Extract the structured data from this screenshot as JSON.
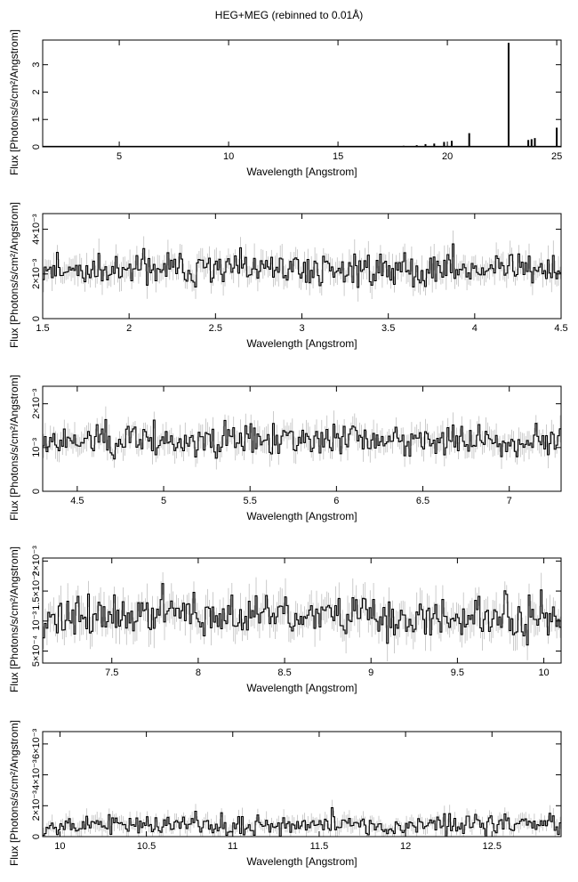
{
  "title": "HEG+MEG (rebinned to 0.01Å)",
  "colors": {
    "data": "#000000",
    "error_bars": "#bfbfbf",
    "frame": "#000000",
    "background": "#ffffff"
  },
  "chart_data": [
    {
      "type": "line",
      "title": "HEG+MEG (rebinned to 0.01Å)",
      "xlabel": "Wavelength [Angstrom]",
      "ylabel": "Flux [Photons/s/cm²/Angstrom]",
      "xlim": [
        1.5,
        25.2
      ],
      "ylim": [
        0,
        3.9
      ],
      "xticks": [
        5,
        10,
        15,
        20,
        25
      ],
      "xtick_labels": [
        "5",
        "10",
        "15",
        "20",
        "25"
      ],
      "yticks": [
        0,
        1,
        2,
        3
      ],
      "ytick_labels": [
        "0",
        "1",
        "2",
        "3"
      ],
      "continuum": 0.015,
      "lines": [
        {
          "x": 17.1,
          "y": 0.03
        },
        {
          "x": 18.0,
          "y": 0.04
        },
        {
          "x": 18.6,
          "y": 0.06
        },
        {
          "x": 19.0,
          "y": 0.1
        },
        {
          "x": 19.4,
          "y": 0.12
        },
        {
          "x": 19.85,
          "y": 0.18
        },
        {
          "x": 20.2,
          "y": 0.22
        },
        {
          "x": 21.0,
          "y": 0.5
        },
        {
          "x": 22.8,
          "y": 3.8
        },
        {
          "x": 23.7,
          "y": 0.25
        },
        {
          "x": 23.85,
          "y": 0.28
        },
        {
          "x": 24.0,
          "y": 0.32
        },
        {
          "x": 25.0,
          "y": 0.7
        }
      ]
    },
    {
      "type": "line",
      "xlabel": "Wavelength [Angstrom]",
      "ylabel": "Flux [Photons/s/cm²/Angstrom]",
      "xlim": [
        1.5,
        4.5
      ],
      "ylim": [
        0,
        0.0047
      ],
      "xticks": [
        1.5,
        2,
        2.5,
        3,
        3.5,
        4,
        4.5
      ],
      "xtick_labels": [
        "1.5",
        "2",
        "2.5",
        "3",
        "3.5",
        "4",
        "4.5"
      ],
      "yticks": [
        0,
        0.002,
        0.004
      ],
      "ytick_labels": [
        "0",
        "2×10⁻³",
        "4×10⁻³"
      ],
      "level": 0.0022,
      "scatter": 0.00045,
      "seed": 11
    },
    {
      "type": "line",
      "xlabel": "Wavelength [Angstrom]",
      "ylabel": "Flux [Photons/s/cm²/Angstrom]",
      "xlim": [
        4.3,
        7.3
      ],
      "ylim": [
        0,
        0.0024
      ],
      "xticks": [
        4.5,
        5,
        5.5,
        6,
        6.5,
        7
      ],
      "xtick_labels": [
        "4.5",
        "5",
        "5.5",
        "6",
        "6.5",
        "7"
      ],
      "yticks": [
        0,
        0.001,
        0.002
      ],
      "ytick_labels": [
        "0",
        "10⁻³",
        "2×10⁻³"
      ],
      "level": 0.00115,
      "scatter": 0.00022,
      "seed": 23
    },
    {
      "type": "line",
      "xlabel": "Wavelength [Angstrom]",
      "ylabel": "Flux [Photons/s/cm²/Angstrom]",
      "xlim": [
        7.1,
        10.1
      ],
      "ylim": [
        0.0003,
        0.00205
      ],
      "xticks": [
        7.5,
        8,
        8.5,
        9,
        9.5,
        10
      ],
      "xtick_labels": [
        "7.5",
        "8",
        "8.5",
        "9",
        "9.5",
        "10"
      ],
      "yticks": [
        0.0005,
        0.001,
        0.0015,
        0.002
      ],
      "ytick_labels": [
        "5×10⁻⁴",
        "10⁻³",
        "1.5×10⁻³",
        "2×10⁻³"
      ],
      "level": 0.00108,
      "scatter": 0.00022,
      "seed": 37
    },
    {
      "type": "line",
      "xlabel": "Wavelength [Angstrom]",
      "ylabel": "Flux [Photons/s/cm²/Angstrom]",
      "xlim": [
        9.9,
        12.9
      ],
      "ylim": [
        0,
        0.0068
      ],
      "xticks": [
        10,
        10.5,
        11,
        11.5,
        12,
        12.5
      ],
      "xtick_labels": [
        "10",
        "10.5",
        "11",
        "11.5",
        "12",
        "12.5"
      ],
      "yticks": [
        0,
        0.002,
        0.004,
        0.006
      ],
      "ytick_labels": [
        "0",
        "2×10⁻³",
        "4×10⁻³",
        "6×10⁻³"
      ],
      "level": 0.00075,
      "scatter": 0.0004,
      "seed": 53
    }
  ]
}
